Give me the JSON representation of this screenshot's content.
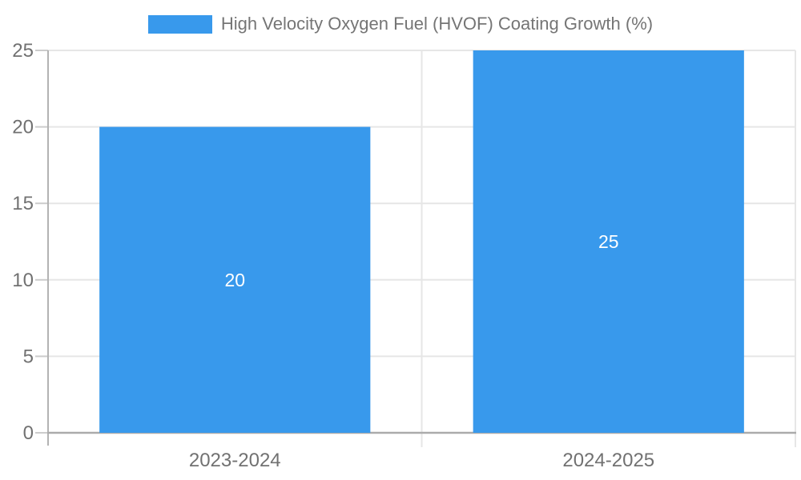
{
  "chart_data": {
    "type": "bar",
    "title": "High Velocity Oxygen Fuel (HVOF) Coating Growth (%)",
    "categories": [
      "2023-2024",
      "2024-2025"
    ],
    "values": [
      20,
      25
    ],
    "data_labels": [
      "20",
      "25"
    ],
    "xlabel": "",
    "ylabel": "",
    "ylim": [
      0,
      25
    ],
    "yticks": [
      0,
      5,
      10,
      15,
      20,
      25
    ],
    "grid": true,
    "legend_position": "top-center"
  },
  "legend": {
    "label": "High Velocity Oxygen Fuel (HVOF) Coating Growth (%)",
    "swatch_color": "#3899EC"
  },
  "colors": {
    "bar": "#3899EC",
    "gridline": "#E6E6E6",
    "y_axis_line": "#B3B3B3",
    "x_axis_line": "#ABABAB",
    "tick": "#CCCCCC",
    "axis_text": "#717171",
    "data_label_text": "#FFFFFF"
  }
}
